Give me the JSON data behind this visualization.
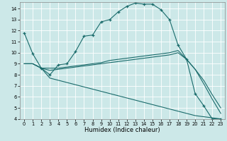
{
  "xlabel": "Humidex (Indice chaleur)",
  "background_color": "#cce8e8",
  "grid_color": "#ffffff",
  "line_color": "#1a6b6b",
  "xlim": [
    -0.5,
    23.5
  ],
  "ylim": [
    4,
    14.6
  ],
  "yticks": [
    4,
    5,
    6,
    7,
    8,
    9,
    10,
    11,
    12,
    13,
    14
  ],
  "xticks": [
    0,
    1,
    2,
    3,
    4,
    5,
    6,
    7,
    8,
    9,
    10,
    11,
    12,
    13,
    14,
    15,
    16,
    17,
    18,
    19,
    20,
    21,
    22,
    23
  ],
  "line1_x": [
    0,
    1,
    2,
    3,
    4,
    5,
    6,
    7,
    8,
    9,
    10,
    11,
    12,
    13,
    14,
    15,
    16,
    17,
    18,
    19,
    20,
    21,
    22,
    23
  ],
  "line1_y": [
    11.8,
    9.9,
    8.6,
    8.0,
    8.9,
    9.0,
    10.1,
    11.5,
    11.6,
    12.8,
    13.0,
    13.7,
    14.2,
    14.5,
    14.4,
    14.4,
    13.9,
    13.0,
    10.7,
    9.4,
    6.3,
    5.2,
    4.0,
    4.0
  ],
  "line2_x": [
    0,
    1,
    2,
    3,
    4,
    5,
    6,
    7,
    8,
    9,
    10,
    11,
    12,
    13,
    14,
    15,
    16,
    17,
    18,
    19,
    20,
    21,
    22,
    23
  ],
  "line2_y": [
    9.0,
    9.0,
    8.6,
    8.6,
    8.6,
    8.7,
    8.8,
    8.9,
    9.0,
    9.1,
    9.3,
    9.4,
    9.5,
    9.6,
    9.7,
    9.8,
    9.9,
    10.0,
    10.2,
    9.4,
    8.5,
    7.5,
    6.2,
    5.0
  ],
  "line3_x": [
    0,
    1,
    2,
    3,
    4,
    5,
    6,
    7,
    8,
    9,
    10,
    11,
    12,
    13,
    14,
    15,
    16,
    17,
    18,
    19,
    20,
    21,
    22,
    23
  ],
  "line3_y": [
    9.0,
    9.0,
    8.6,
    8.4,
    8.5,
    8.6,
    8.7,
    8.8,
    8.9,
    9.0,
    9.1,
    9.2,
    9.3,
    9.4,
    9.5,
    9.6,
    9.7,
    9.8,
    10.0,
    9.4,
    8.5,
    7.2,
    5.8,
    4.5
  ],
  "line4_x": [
    0,
    1,
    2,
    3,
    4,
    5,
    6,
    7,
    8,
    9,
    10,
    11,
    12,
    13,
    14,
    15,
    16,
    17,
    18,
    19,
    20,
    21,
    22,
    23
  ],
  "line4_y": [
    9.0,
    9.0,
    8.6,
    7.7,
    7.5,
    7.3,
    7.1,
    6.9,
    6.7,
    6.5,
    6.3,
    6.1,
    5.9,
    5.7,
    5.5,
    5.3,
    5.1,
    4.9,
    4.7,
    4.5,
    4.3,
    4.2,
    4.1,
    4.0
  ]
}
